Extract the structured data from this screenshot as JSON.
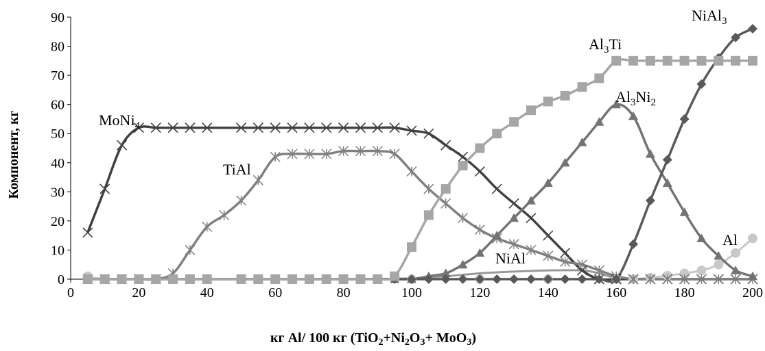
{
  "chart_data": {
    "type": "line",
    "xlabel": {
      "pre": "кг Al/ 100 кг (TiO",
      "s1": "2",
      "m1": "+Ni",
      "s2": "2",
      "m2": "O",
      "s3": "3",
      "m3": "+ MoO",
      "s4": "3",
      "post": ")"
    },
    "ylabel": "Компонент, кг",
    "xlim": [
      0,
      200
    ],
    "ylim": [
      0,
      90
    ],
    "x_ticks": [
      "0",
      "20",
      "40",
      "60",
      "80",
      "100",
      "120",
      "140",
      "160",
      "180",
      "200"
    ],
    "y_ticks": [
      "0",
      "10",
      "20",
      "30",
      "40",
      "50",
      "60",
      "70",
      "80",
      "90"
    ],
    "grid": false,
    "legend": "none",
    "series": [
      {
        "key": "moni4",
        "color": "#404040",
        "marker": "x",
        "label": {
          "main": "MoNi",
          "sub": "4",
          "tail": ""
        },
        "points": [
          [
            5,
            16
          ],
          [
            10,
            31
          ],
          [
            15,
            46
          ],
          [
            20,
            52
          ],
          [
            25,
            52
          ],
          [
            30,
            52
          ],
          [
            35,
            52
          ],
          [
            40,
            52
          ],
          [
            50,
            52
          ],
          [
            55,
            52
          ],
          [
            60,
            52
          ],
          [
            65,
            52
          ],
          [
            70,
            52
          ],
          [
            75,
            52
          ],
          [
            80,
            52
          ],
          [
            85,
            52
          ],
          [
            90,
            52
          ],
          [
            95,
            52
          ],
          [
            100,
            51
          ],
          [
            105,
            50
          ],
          [
            110,
            46
          ],
          [
            115,
            42
          ],
          [
            120,
            37
          ],
          [
            125,
            31
          ],
          [
            130,
            26
          ],
          [
            135,
            21
          ],
          [
            140,
            15
          ],
          [
            145,
            9
          ],
          [
            150,
            3
          ],
          [
            155,
            0
          ],
          [
            160,
            0
          ],
          [
            165,
            0
          ],
          [
            170,
            0
          ],
          [
            175,
            0
          ],
          [
            180,
            0
          ],
          [
            185,
            0
          ],
          [
            190,
            0
          ],
          [
            195,
            0
          ],
          [
            200,
            0
          ]
        ]
      },
      {
        "key": "tial",
        "color": "#808080",
        "marker": "star",
        "label": {
          "main": "TiAl",
          "sub": "",
          "tail": ""
        },
        "points": [
          [
            5,
            0
          ],
          [
            10,
            0
          ],
          [
            15,
            0
          ],
          [
            20,
            0
          ],
          [
            25,
            0
          ],
          [
            30,
            2
          ],
          [
            35,
            10
          ],
          [
            40,
            18
          ],
          [
            45,
            22
          ],
          [
            50,
            27
          ],
          [
            55,
            34
          ],
          [
            60,
            42
          ],
          [
            65,
            43
          ],
          [
            70,
            43
          ],
          [
            75,
            43
          ],
          [
            80,
            44
          ],
          [
            85,
            44
          ],
          [
            90,
            44
          ],
          [
            95,
            43
          ],
          [
            100,
            37
          ],
          [
            105,
            31
          ],
          [
            110,
            26
          ],
          [
            115,
            21
          ],
          [
            120,
            17
          ],
          [
            125,
            14
          ],
          [
            130,
            12
          ],
          [
            135,
            10
          ],
          [
            140,
            8
          ],
          [
            145,
            6
          ],
          [
            150,
            5
          ],
          [
            155,
            3
          ],
          [
            160,
            1
          ],
          [
            165,
            0
          ],
          [
            170,
            0
          ],
          [
            175,
            0
          ],
          [
            180,
            0
          ],
          [
            185,
            0
          ],
          [
            190,
            0
          ],
          [
            195,
            0
          ],
          [
            200,
            0
          ]
        ]
      },
      {
        "key": "al3ti",
        "color": "#a6a6a6",
        "marker": "square",
        "label": {
          "main": "Al",
          "sub": "3",
          "tail": "Ti"
        },
        "points": [
          [
            5,
            0
          ],
          [
            10,
            0
          ],
          [
            15,
            0
          ],
          [
            20,
            0
          ],
          [
            25,
            0
          ],
          [
            30,
            0
          ],
          [
            35,
            0
          ],
          [
            40,
            0
          ],
          [
            50,
            0
          ],
          [
            55,
            0
          ],
          [
            60,
            0
          ],
          [
            65,
            0
          ],
          [
            70,
            0
          ],
          [
            75,
            0
          ],
          [
            80,
            0
          ],
          [
            85,
            0
          ],
          [
            90,
            0
          ],
          [
            95,
            1
          ],
          [
            100,
            11
          ],
          [
            105,
            22
          ],
          [
            110,
            31
          ],
          [
            115,
            39
          ],
          [
            120,
            45
          ],
          [
            125,
            50
          ],
          [
            130,
            54
          ],
          [
            135,
            58
          ],
          [
            140,
            61
          ],
          [
            145,
            63
          ],
          [
            150,
            66
          ],
          [
            155,
            69
          ],
          [
            160,
            75
          ],
          [
            165,
            75
          ],
          [
            170,
            75
          ],
          [
            175,
            75
          ],
          [
            180,
            75
          ],
          [
            185,
            75
          ],
          [
            190,
            75
          ],
          [
            195,
            75
          ],
          [
            200,
            75
          ]
        ]
      },
      {
        "key": "al3ni2",
        "color": "#737373",
        "marker": "triangle",
        "label": {
          "main": "Al",
          "sub": "3",
          "tail": "Ni₂"
        },
        "points": [
          [
            5,
            0
          ],
          [
            10,
            0
          ],
          [
            15,
            0
          ],
          [
            20,
            0
          ],
          [
            25,
            0
          ],
          [
            30,
            0
          ],
          [
            35,
            0
          ],
          [
            40,
            0
          ],
          [
            50,
            0
          ],
          [
            55,
            0
          ],
          [
            60,
            0
          ],
          [
            65,
            0
          ],
          [
            70,
            0
          ],
          [
            75,
            0
          ],
          [
            80,
            0
          ],
          [
            85,
            0
          ],
          [
            90,
            0
          ],
          [
            95,
            0
          ],
          [
            100,
            0
          ],
          [
            105,
            1
          ],
          [
            110,
            2
          ],
          [
            115,
            5
          ],
          [
            120,
            9
          ],
          [
            125,
            15
          ],
          [
            130,
            21
          ],
          [
            135,
            27
          ],
          [
            140,
            33
          ],
          [
            145,
            40
          ],
          [
            150,
            47
          ],
          [
            155,
            54
          ],
          [
            160,
            60
          ],
          [
            165,
            56
          ],
          [
            170,
            43
          ],
          [
            175,
            33
          ],
          [
            180,
            23
          ],
          [
            185,
            14
          ],
          [
            190,
            8
          ],
          [
            195,
            3
          ],
          [
            200,
            1
          ]
        ]
      },
      {
        "key": "nial3",
        "color": "#595959",
        "marker": "diamond",
        "label": {
          "main": "NiAl",
          "sub": "3",
          "tail": ""
        },
        "points": [
          [
            5,
            0
          ],
          [
            10,
            0
          ],
          [
            15,
            0
          ],
          [
            20,
            0
          ],
          [
            25,
            0
          ],
          [
            30,
            0
          ],
          [
            35,
            0
          ],
          [
            40,
            0
          ],
          [
            50,
            0
          ],
          [
            55,
            0
          ],
          [
            60,
            0
          ],
          [
            65,
            0
          ],
          [
            70,
            0
          ],
          [
            75,
            0
          ],
          [
            80,
            0
          ],
          [
            85,
            0
          ],
          [
            90,
            0
          ],
          [
            95,
            0
          ],
          [
            100,
            0
          ],
          [
            105,
            0
          ],
          [
            110,
            0
          ],
          [
            115,
            0
          ],
          [
            120,
            0
          ],
          [
            125,
            0
          ],
          [
            130,
            0
          ],
          [
            135,
            0
          ],
          [
            140,
            0
          ],
          [
            145,
            0
          ],
          [
            150,
            0
          ],
          [
            155,
            0
          ],
          [
            160,
            0
          ],
          [
            165,
            12
          ],
          [
            170,
            27
          ],
          [
            175,
            41
          ],
          [
            180,
            55
          ],
          [
            185,
            67
          ],
          [
            190,
            76
          ],
          [
            195,
            83
          ],
          [
            200,
            86
          ]
        ]
      },
      {
        "key": "nial",
        "color": "#999999",
        "marker": "none",
        "label": {
          "main": "NiAl",
          "sub": "",
          "tail": ""
        },
        "points": [
          [
            5,
            0
          ],
          [
            20,
            0
          ],
          [
            40,
            0
          ],
          [
            60,
            0
          ],
          [
            80,
            0
          ],
          [
            100,
            0.3
          ],
          [
            110,
            1
          ],
          [
            120,
            2
          ],
          [
            130,
            2.6
          ],
          [
            140,
            3
          ],
          [
            150,
            3
          ],
          [
            155,
            2
          ],
          [
            160,
            0.5
          ],
          [
            170,
            0
          ],
          [
            200,
            0
          ]
        ]
      },
      {
        "key": "al",
        "color": "#c8c8c8",
        "marker": "circle",
        "label": {
          "main": "Al",
          "sub": "",
          "tail": ""
        },
        "points": [
          [
            5,
            1
          ],
          [
            10,
            0
          ],
          [
            20,
            0
          ],
          [
            40,
            0
          ],
          [
            60,
            0
          ],
          [
            80,
            0
          ],
          [
            100,
            0
          ],
          [
            120,
            0
          ],
          [
            140,
            0
          ],
          [
            160,
            0
          ],
          [
            165,
            0
          ],
          [
            170,
            0.5
          ],
          [
            175,
            1.2
          ],
          [
            180,
            2
          ],
          [
            185,
            3
          ],
          [
            190,
            5
          ],
          [
            195,
            9
          ],
          [
            200,
            14
          ]
        ]
      }
    ]
  }
}
